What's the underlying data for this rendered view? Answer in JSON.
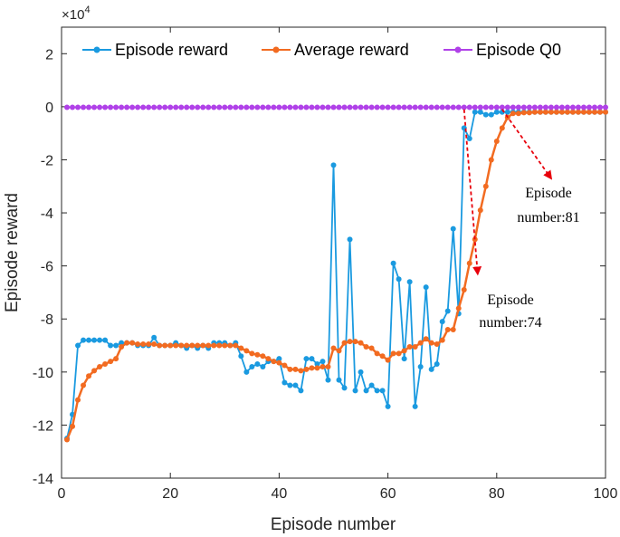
{
  "chart_data": {
    "type": "line",
    "title": "",
    "xlabel": "Episode number",
    "ylabel": "Episode reward",
    "xlim": [
      0,
      100
    ],
    "ylim": [
      -14,
      3
    ],
    "y_scale_exponent_label": "×10",
    "y_scale_exponent_power": "4",
    "x_ticks": [
      "0",
      "20",
      "40",
      "60",
      "80",
      "100"
    ],
    "y_ticks": [
      "-14",
      "-12",
      "-10",
      "-8",
      "-6",
      "-4",
      "-2",
      "0",
      "2"
    ],
    "grid": false,
    "legend_position": "top",
    "series": [
      {
        "name": "Episode reward",
        "color": "#1a9ae0",
        "x": [
          1,
          2,
          3,
          4,
          5,
          6,
          7,
          8,
          9,
          10,
          11,
          12,
          13,
          14,
          15,
          16,
          17,
          18,
          19,
          20,
          21,
          22,
          23,
          24,
          25,
          26,
          27,
          28,
          29,
          30,
          31,
          32,
          33,
          34,
          35,
          36,
          37,
          38,
          39,
          40,
          41,
          42,
          43,
          44,
          45,
          46,
          47,
          48,
          49,
          50,
          51,
          52,
          53,
          54,
          55,
          56,
          57,
          58,
          59,
          60,
          61,
          62,
          63,
          64,
          65,
          66,
          67,
          68,
          69,
          70,
          71,
          72,
          73,
          74,
          75,
          76,
          77,
          78,
          79,
          80,
          81,
          82,
          83,
          84,
          85,
          86,
          87,
          88,
          89,
          90,
          91,
          92,
          93,
          94,
          95,
          96,
          97,
          98,
          99,
          100
        ],
        "values": [
          -12.5,
          -11.6,
          -9.0,
          -8.8,
          -8.8,
          -8.8,
          -8.8,
          -8.8,
          -9.0,
          -9.0,
          -8.9,
          -8.9,
          -8.9,
          -9.0,
          -9.0,
          -9.0,
          -8.7,
          -9.0,
          -9.0,
          -9.0,
          -8.9,
          -9.0,
          -9.1,
          -9.0,
          -9.1,
          -9.0,
          -9.1,
          -8.9,
          -8.9,
          -8.9,
          -9.0,
          -8.9,
          -9.4,
          -10.0,
          -9.8,
          -9.7,
          -9.8,
          -9.6,
          -9.6,
          -9.5,
          -10.4,
          -10.5,
          -10.5,
          -10.7,
          -9.5,
          -9.5,
          -9.7,
          -9.6,
          -10.3,
          -2.2,
          -10.3,
          -10.6,
          -5.0,
          -10.7,
          -10.0,
          -10.7,
          -10.5,
          -10.7,
          -10.7,
          -11.3,
          -5.9,
          -6.5,
          -9.5,
          -6.6,
          -11.3,
          -9.8,
          -6.8,
          -9.9,
          -9.7,
          -8.1,
          -7.7,
          -4.6,
          -7.8,
          -0.8,
          -1.2,
          -0.2,
          -0.2,
          -0.3,
          -0.3,
          -0.2,
          -0.2,
          -0.2,
          -0.2,
          -0.2,
          -0.2,
          -0.2,
          -0.2,
          -0.2,
          -0.2,
          -0.2,
          -0.2,
          -0.2,
          -0.2,
          -0.2,
          -0.2,
          -0.2,
          -0.2,
          -0.2,
          -0.2,
          -0.2
        ]
      },
      {
        "name": "Average reward",
        "color": "#f26b21",
        "x": [
          1,
          2,
          3,
          4,
          5,
          6,
          7,
          8,
          9,
          10,
          11,
          12,
          13,
          14,
          15,
          16,
          17,
          18,
          19,
          20,
          21,
          22,
          23,
          24,
          25,
          26,
          27,
          28,
          29,
          30,
          31,
          32,
          33,
          34,
          35,
          36,
          37,
          38,
          39,
          40,
          41,
          42,
          43,
          44,
          45,
          46,
          47,
          48,
          49,
          50,
          51,
          52,
          53,
          54,
          55,
          56,
          57,
          58,
          59,
          60,
          61,
          62,
          63,
          64,
          65,
          66,
          67,
          68,
          69,
          70,
          71,
          72,
          73,
          74,
          75,
          76,
          77,
          78,
          79,
          80,
          81,
          82,
          83,
          84,
          85,
          86,
          87,
          88,
          89,
          90,
          91,
          92,
          93,
          94,
          95,
          96,
          97,
          98,
          99,
          100
        ],
        "values": [
          -12.55,
          -12.05,
          -11.05,
          -10.5,
          -10.15,
          -9.95,
          -9.8,
          -9.7,
          -9.6,
          -9.5,
          -9.05,
          -8.9,
          -8.9,
          -8.95,
          -8.95,
          -8.95,
          -8.95,
          -9.0,
          -9.0,
          -9.0,
          -9.0,
          -9.0,
          -9.0,
          -9.0,
          -9.0,
          -9.0,
          -9.0,
          -9.0,
          -9.0,
          -9.0,
          -9.0,
          -9.0,
          -9.1,
          -9.2,
          -9.3,
          -9.35,
          -9.4,
          -9.5,
          -9.6,
          -9.65,
          -9.75,
          -9.9,
          -9.9,
          -9.95,
          -9.9,
          -9.85,
          -9.85,
          -9.8,
          -9.8,
          -9.1,
          -9.2,
          -8.9,
          -8.85,
          -8.85,
          -8.9,
          -9.05,
          -9.1,
          -9.3,
          -9.4,
          -9.55,
          -9.3,
          -9.3,
          -9.2,
          -9.05,
          -9.05,
          -8.9,
          -8.75,
          -8.9,
          -8.95,
          -8.8,
          -8.4,
          -8.4,
          -7.6,
          -6.9,
          -5.9,
          -5.0,
          -3.9,
          -3.0,
          -2.0,
          -1.3,
          -0.8,
          -0.4,
          -0.25,
          -0.25,
          -0.22,
          -0.22,
          -0.2,
          -0.2,
          -0.2,
          -0.2,
          -0.2,
          -0.2,
          -0.2,
          -0.2,
          -0.2,
          -0.2,
          -0.2,
          -0.2,
          -0.2,
          -0.2
        ]
      },
      {
        "name": "Episode Q0",
        "color": "#b041e8",
        "x": [
          1,
          2,
          3,
          4,
          5,
          6,
          7,
          8,
          9,
          10,
          11,
          12,
          13,
          14,
          15,
          16,
          17,
          18,
          19,
          20,
          21,
          22,
          23,
          24,
          25,
          26,
          27,
          28,
          29,
          30,
          31,
          32,
          33,
          34,
          35,
          36,
          37,
          38,
          39,
          40,
          41,
          42,
          43,
          44,
          45,
          46,
          47,
          48,
          49,
          50,
          51,
          52,
          53,
          54,
          55,
          56,
          57,
          58,
          59,
          60,
          61,
          62,
          63,
          64,
          65,
          66,
          67,
          68,
          69,
          70,
          71,
          72,
          73,
          74,
          75,
          76,
          77,
          78,
          79,
          80,
          81,
          82,
          83,
          84,
          85,
          86,
          87,
          88,
          89,
          90,
          91,
          92,
          93,
          94,
          95,
          96,
          97,
          98,
          99,
          100
        ],
        "values": [
          -0.02,
          -0.02,
          -0.02,
          -0.02,
          -0.02,
          -0.02,
          -0.02,
          -0.02,
          -0.02,
          -0.02,
          -0.02,
          -0.02,
          -0.02,
          -0.02,
          -0.02,
          -0.02,
          -0.02,
          -0.02,
          -0.02,
          -0.02,
          -0.02,
          -0.02,
          -0.02,
          -0.02,
          -0.02,
          -0.02,
          -0.02,
          -0.02,
          -0.02,
          -0.02,
          -0.02,
          -0.02,
          -0.02,
          -0.02,
          -0.02,
          -0.02,
          -0.02,
          -0.02,
          -0.02,
          -0.02,
          -0.02,
          -0.02,
          -0.02,
          -0.02,
          -0.02,
          -0.02,
          -0.02,
          -0.02,
          -0.02,
          -0.02,
          -0.02,
          -0.02,
          -0.02,
          -0.02,
          -0.02,
          -0.02,
          -0.02,
          -0.02,
          -0.02,
          -0.02,
          -0.02,
          -0.02,
          -0.02,
          -0.02,
          -0.02,
          -0.02,
          -0.02,
          -0.02,
          -0.02,
          -0.02,
          -0.02,
          -0.02,
          -0.02,
          -0.02,
          -0.02,
          -0.02,
          -0.02,
          -0.02,
          -0.02,
          -0.02,
          -0.02,
          -0.02,
          -0.02,
          -0.02,
          -0.02,
          -0.02,
          -0.02,
          -0.02,
          -0.02,
          -0.02,
          -0.02,
          -0.02,
          -0.02,
          -0.02,
          -0.02,
          -0.02,
          -0.02,
          -0.02,
          -0.02,
          -0.02
        ]
      }
    ],
    "annotations": [
      {
        "text_line1": "Episode",
        "text_line2": "number:81",
        "from_x": 81,
        "from_y": -0.1,
        "to_x": 90,
        "to_y": -2.7
      },
      {
        "text_line1": "Episode",
        "text_line2": "number:74",
        "from_x": 74,
        "from_y": -0.1,
        "to_x": 76.5,
        "to_y": -6.3
      }
    ],
    "annotation_color": "#e8000b"
  }
}
